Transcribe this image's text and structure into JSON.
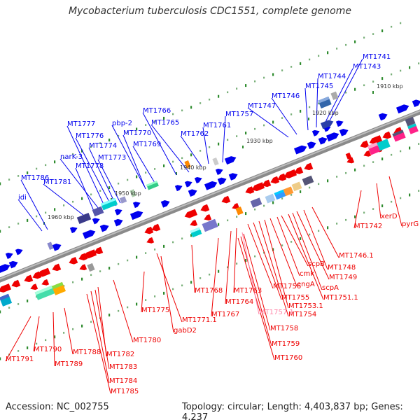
{
  "header": {
    "title": "Mycobacterium tuberculosis CDC1551, complete genome"
  },
  "footer": {
    "accession": "Accession: NC_002755",
    "summary": "Topology: circular; Length: 4,403,837 bp; Genes: 4,237"
  },
  "colors": {
    "forward_strand": "#0000ee",
    "reverse_strand": "#ee0000",
    "pseudo_label": "#ff88aa",
    "ring": "#777777"
  },
  "ticks": [
    "1910 kbp",
    "1920 kbp",
    "1930 kbp",
    "1940 kbp",
    "1950 kbp",
    "1960 kbp"
  ],
  "forward_labels": [
    "MT1741",
    "MT1743",
    "MT1744",
    "MT1745",
    "MT1746",
    "MT1747",
    "MT1757",
    "MT1761",
    "MT1762",
    "MT1765",
    "MT1766",
    "pbp-2",
    "MT1770",
    "MT1769",
    "MT1773",
    "MT1774",
    "MT1776",
    "MT1777",
    "narK-3",
    "MT1778",
    "MT1781",
    "MT1786",
    "idi"
  ],
  "reverse_labels": [
    "MT1742",
    "xerD",
    "pyrG",
    "MT1746.1",
    "MT1748",
    "MT1749",
    "scpA",
    "MT1751.1",
    "scpB",
    "cmk",
    "engA",
    "MT1753.1",
    "MT1754",
    "MT1755",
    "MT1756",
    "MT1763",
    "MT1764",
    "MT1767",
    "MT1768",
    "MT1771.1",
    "gabD2",
    "MT1775",
    "MT1780",
    "MT1782",
    "MT1783",
    "MT1784",
    "MT1785",
    "MT1788",
    "MT1789",
    "MT1790",
    "MT1791",
    "MT1758",
    "MT1759",
    "MT1760"
  ],
  "pseudo_labels": [
    "MT1757.1"
  ]
}
